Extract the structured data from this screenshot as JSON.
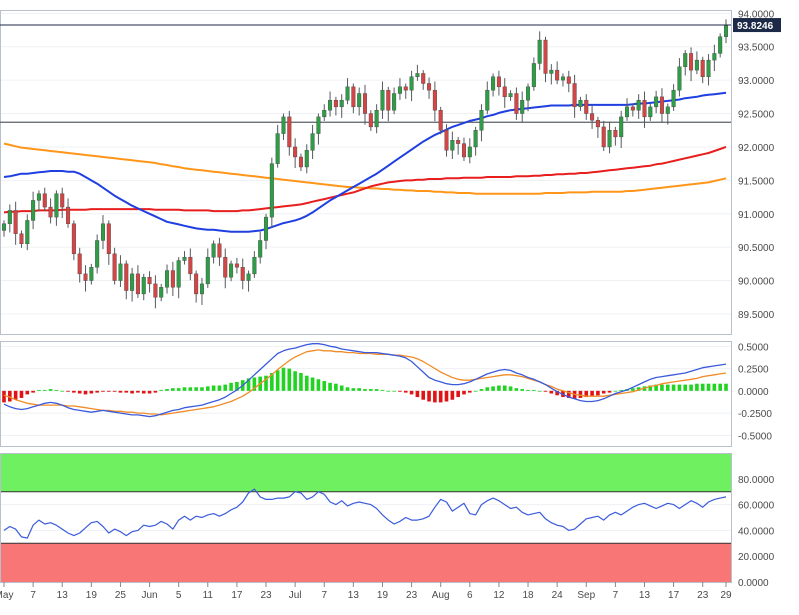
{
  "chart_data": [
    {
      "type": "candlestick",
      "name": "price",
      "ylim": [
        89.2,
        94.05
      ],
      "y_ticks": [
        "94.0000",
        "93.5000",
        "93.0000",
        "92.5000",
        "92.0000",
        "91.5000",
        "91.0000",
        "90.5000",
        "90.0000",
        "89.5000"
      ],
      "y_tick_values": [
        94.0,
        93.5,
        93.0,
        92.5,
        92.0,
        91.5,
        91.0,
        90.5,
        90.0,
        89.5
      ],
      "last_price_label": "93.8246",
      "last_price": 93.8246,
      "horizontal_level": 92.37,
      "colors": {
        "up": "#2e9e46",
        "down": "#d64545",
        "ma_fast": "#1f3fe0",
        "ma_mid": "#e81e1e",
        "ma_slow": "#ff9619"
      },
      "x_labels": [
        "May",
        "7",
        "13",
        "19",
        "25",
        "Jun",
        "5",
        "11",
        "17",
        "23",
        "Jul",
        "7",
        "13",
        "19",
        "23",
        "Aug",
        "6",
        "12",
        "18",
        "24",
        "Sep",
        "7",
        "13",
        "17",
        "23",
        "29"
      ],
      "x_label_positions": [
        0,
        5,
        10,
        15,
        20,
        25,
        30,
        35,
        40,
        45,
        50,
        55,
        60,
        65,
        70,
        75,
        80,
        85,
        90,
        95,
        100,
        105,
        110,
        115,
        120,
        124
      ],
      "closes": [
        90.85,
        91.05,
        90.7,
        90.55,
        90.9,
        91.2,
        91.3,
        91.1,
        90.95,
        91.3,
        91.1,
        90.85,
        90.4,
        90.1,
        90.0,
        90.2,
        90.6,
        90.85,
        90.4,
        90.0,
        90.25,
        89.85,
        90.1,
        89.8,
        90.05,
        89.95,
        89.75,
        89.9,
        90.15,
        89.9,
        90.3,
        90.35,
        90.1,
        89.8,
        89.95,
        90.35,
        90.55,
        90.35,
        90.05,
        90.25,
        90.2,
        90.0,
        90.1,
        90.35,
        90.6,
        90.95,
        91.75,
        92.2,
        92.45,
        92.0,
        91.85,
        91.7,
        91.95,
        92.2,
        92.45,
        92.55,
        92.7,
        92.6,
        92.7,
        92.9,
        92.6,
        92.8,
        92.5,
        92.3,
        92.55,
        92.85,
        92.55,
        92.8,
        92.9,
        92.85,
        93.05,
        93.1,
        92.95,
        92.85,
        92.55,
        92.25,
        91.95,
        92.1,
        92.05,
        91.85,
        92.0,
        92.25,
        92.55,
        92.85,
        93.05,
        92.9,
        92.75,
        92.8,
        92.5,
        92.7,
        92.9,
        93.25,
        93.6,
        93.1,
        93.15,
        93.0,
        93.05,
        92.95,
        92.6,
        92.7,
        92.5,
        92.4,
        92.3,
        92.0,
        92.25,
        92.15,
        92.45,
        92.6,
        92.55,
        92.7,
        92.45,
        92.6,
        92.75,
        92.5,
        92.6,
        92.85,
        93.2,
        93.4,
        93.15,
        93.3,
        93.05,
        93.3,
        93.4,
        93.65,
        93.82
      ],
      "ma_fast": [
        91.55,
        91.56,
        91.58,
        91.6,
        91.6,
        91.61,
        91.62,
        91.63,
        91.64,
        91.64,
        91.64,
        91.63,
        91.63,
        91.6,
        91.55,
        91.5,
        91.45,
        91.39,
        91.33,
        91.27,
        91.22,
        91.17,
        91.12,
        91.08,
        91.04,
        91.0,
        90.96,
        90.92,
        90.88,
        90.86,
        90.84,
        90.82,
        90.8,
        90.78,
        90.77,
        90.76,
        90.76,
        90.75,
        90.74,
        90.73,
        90.73,
        90.73,
        90.73,
        90.74,
        90.75,
        90.77,
        90.8,
        90.83,
        90.86,
        90.88,
        90.9,
        90.93,
        90.97,
        91.02,
        91.08,
        91.14,
        91.2,
        91.25,
        91.3,
        91.35,
        91.4,
        91.45,
        91.5,
        91.55,
        91.6,
        91.66,
        91.72,
        91.78,
        91.84,
        91.9,
        91.96,
        92.02,
        92.08,
        92.13,
        92.18,
        92.22,
        92.26,
        92.3,
        92.33,
        92.36,
        92.39,
        92.41,
        92.43,
        92.46,
        92.48,
        92.51,
        92.53,
        92.55,
        92.56,
        92.57,
        92.58,
        92.59,
        92.6,
        92.61,
        92.62,
        92.62,
        92.62,
        92.62,
        92.63,
        92.63,
        92.63,
        92.63,
        92.63,
        92.63,
        92.63,
        92.63,
        92.63,
        92.63,
        92.64,
        92.65,
        92.65,
        92.66,
        92.67,
        92.68,
        92.69,
        92.7,
        92.71,
        92.73,
        92.74,
        92.75,
        92.77,
        92.78,
        92.79,
        92.8,
        92.81
      ],
      "ma_mid": [
        91.02,
        91.03,
        91.03,
        91.04,
        91.04,
        91.04,
        91.05,
        91.05,
        91.05,
        91.05,
        91.06,
        91.06,
        91.06,
        91.06,
        91.06,
        91.07,
        91.07,
        91.07,
        91.07,
        91.07,
        91.07,
        91.07,
        91.07,
        91.07,
        91.07,
        91.07,
        91.06,
        91.06,
        91.06,
        91.06,
        91.06,
        91.05,
        91.05,
        91.05,
        91.05,
        91.05,
        91.04,
        91.04,
        91.04,
        91.04,
        91.04,
        91.05,
        91.05,
        91.06,
        91.07,
        91.08,
        91.09,
        91.1,
        91.11,
        91.12,
        91.13,
        91.14,
        91.16,
        91.18,
        91.2,
        91.22,
        91.24,
        91.26,
        91.28,
        91.3,
        91.32,
        91.35,
        91.38,
        91.41,
        91.43,
        91.45,
        91.47,
        91.48,
        91.49,
        91.5,
        91.5,
        91.51,
        91.51,
        91.52,
        91.52,
        91.52,
        91.53,
        91.53,
        91.53,
        91.54,
        91.54,
        91.54,
        91.54,
        91.55,
        91.55,
        91.55,
        91.55,
        91.55,
        91.56,
        91.56,
        91.56,
        91.57,
        91.57,
        91.58,
        91.58,
        91.59,
        91.59,
        91.6,
        91.6,
        91.61,
        91.61,
        91.62,
        91.63,
        91.64,
        91.65,
        91.66,
        91.67,
        91.68,
        91.69,
        91.7,
        91.71,
        91.72,
        91.74,
        91.75,
        91.77,
        91.79,
        91.81,
        91.83,
        91.85,
        91.87,
        91.89,
        91.91,
        91.94,
        91.97,
        92.0
      ],
      "ma_slow": [
        92.05,
        92.03,
        92.01,
        91.99,
        91.98,
        91.97,
        91.96,
        91.95,
        91.94,
        91.93,
        91.92,
        91.91,
        91.9,
        91.89,
        91.88,
        91.87,
        91.86,
        91.85,
        91.84,
        91.83,
        91.82,
        91.81,
        91.8,
        91.79,
        91.78,
        91.77,
        91.76,
        91.74,
        91.73,
        91.71,
        91.7,
        91.68,
        91.67,
        91.66,
        91.65,
        91.64,
        91.63,
        91.62,
        91.61,
        91.6,
        91.59,
        91.58,
        91.57,
        91.56,
        91.55,
        91.54,
        91.53,
        91.52,
        91.51,
        91.5,
        91.49,
        91.48,
        91.47,
        91.46,
        91.45,
        91.44,
        91.43,
        91.42,
        91.41,
        91.4,
        91.4,
        91.39,
        91.39,
        91.38,
        91.38,
        91.37,
        91.37,
        91.36,
        91.36,
        91.35,
        91.35,
        91.34,
        91.34,
        91.34,
        91.33,
        91.33,
        91.32,
        91.32,
        91.31,
        91.31,
        91.31,
        91.3,
        91.3,
        91.3,
        91.3,
        91.3,
        91.3,
        91.3,
        91.3,
        91.3,
        91.3,
        91.3,
        91.3,
        91.31,
        91.31,
        91.31,
        91.31,
        91.32,
        91.32,
        91.32,
        91.32,
        91.33,
        91.33,
        91.33,
        91.33,
        91.33,
        91.33,
        91.34,
        91.34,
        91.35,
        91.36,
        91.37,
        91.38,
        91.39,
        91.4,
        91.41,
        91.42,
        91.43,
        91.44,
        91.45,
        91.46,
        91.47,
        91.49,
        91.51,
        91.53
      ]
    },
    {
      "type": "macd",
      "name": "macd",
      "ylim": [
        -0.62,
        0.56
      ],
      "y_ticks": [
        "0.5000",
        "0.2500",
        "0.0000",
        "-0.2500",
        "-0.5000"
      ],
      "y_tick_values": [
        0.5,
        0.25,
        0.0,
        -0.25,
        -0.5
      ],
      "colors": {
        "macd": "#3b5bdb",
        "signal": "#f08c28",
        "hist_up": "#22d322",
        "hist_down": "#e01414"
      },
      "macd_line": [
        -0.15,
        -0.18,
        -0.2,
        -0.21,
        -0.2,
        -0.18,
        -0.16,
        -0.14,
        -0.13,
        -0.14,
        -0.16,
        -0.19,
        -0.21,
        -0.22,
        -0.23,
        -0.24,
        -0.23,
        -0.22,
        -0.23,
        -0.24,
        -0.25,
        -0.26,
        -0.27,
        -0.27,
        -0.28,
        -0.29,
        -0.28,
        -0.26,
        -0.24,
        -0.22,
        -0.21,
        -0.19,
        -0.18,
        -0.17,
        -0.16,
        -0.14,
        -0.12,
        -0.1,
        -0.07,
        -0.03,
        0.01,
        0.06,
        0.12,
        0.18,
        0.24,
        0.3,
        0.36,
        0.42,
        0.45,
        0.47,
        0.48,
        0.5,
        0.52,
        0.53,
        0.53,
        0.52,
        0.5,
        0.49,
        0.47,
        0.46,
        0.45,
        0.44,
        0.43,
        0.43,
        0.43,
        0.42,
        0.41,
        0.4,
        0.39,
        0.37,
        0.33,
        0.27,
        0.21,
        0.15,
        0.12,
        0.1,
        0.08,
        0.07,
        0.07,
        0.08,
        0.1,
        0.13,
        0.16,
        0.19,
        0.21,
        0.23,
        0.24,
        0.23,
        0.2,
        0.18,
        0.15,
        0.13,
        0.1,
        0.07,
        0.03,
        -0.01,
        -0.04,
        -0.07,
        -0.09,
        -0.11,
        -0.12,
        -0.12,
        -0.11,
        -0.09,
        -0.06,
        -0.03,
        -0.01,
        0.01,
        0.04,
        0.07,
        0.1,
        0.13,
        0.15,
        0.16,
        0.17,
        0.18,
        0.19,
        0.2,
        0.22,
        0.24,
        0.26,
        0.27,
        0.28,
        0.29,
        0.3
      ],
      "signal_line": [
        -0.05,
        -0.07,
        -0.1,
        -0.12,
        -0.14,
        -0.15,
        -0.16,
        -0.16,
        -0.16,
        -0.16,
        -0.16,
        -0.17,
        -0.17,
        -0.18,
        -0.19,
        -0.2,
        -0.21,
        -0.22,
        -0.22,
        -0.23,
        -0.23,
        -0.24,
        -0.24,
        -0.25,
        -0.25,
        -0.26,
        -0.26,
        -0.27,
        -0.26,
        -0.25,
        -0.24,
        -0.23,
        -0.22,
        -0.21,
        -0.2,
        -0.19,
        -0.18,
        -0.16,
        -0.14,
        -0.12,
        -0.09,
        -0.06,
        -0.02,
        0.03,
        0.08,
        0.13,
        0.18,
        0.24,
        0.29,
        0.34,
        0.38,
        0.41,
        0.44,
        0.45,
        0.46,
        0.45,
        0.45,
        0.44,
        0.44,
        0.43,
        0.43,
        0.42,
        0.42,
        0.42,
        0.41,
        0.41,
        0.41,
        0.4,
        0.4,
        0.39,
        0.38,
        0.36,
        0.33,
        0.29,
        0.25,
        0.21,
        0.18,
        0.15,
        0.13,
        0.12,
        0.12,
        0.13,
        0.14,
        0.15,
        0.16,
        0.17,
        0.18,
        0.18,
        0.17,
        0.16,
        0.14,
        0.12,
        0.1,
        0.07,
        0.05,
        0.02,
        0.0,
        -0.02,
        -0.04,
        -0.05,
        -0.06,
        -0.06,
        -0.06,
        -0.06,
        -0.05,
        -0.04,
        -0.03,
        -0.02,
        -0.01,
        0.01,
        0.03,
        0.05,
        0.06,
        0.08,
        0.09,
        0.1,
        0.11,
        0.12,
        0.13,
        0.14,
        0.16,
        0.17,
        0.18,
        0.19,
        0.2
      ],
      "histogram": [
        -0.13,
        -0.12,
        -0.1,
        -0.08,
        -0.04,
        -0.02,
        0.01,
        0.01,
        0.02,
        0.01,
        0.0,
        -0.01,
        -0.02,
        -0.03,
        -0.04,
        -0.03,
        -0.02,
        -0.01,
        -0.01,
        -0.01,
        -0.02,
        -0.02,
        -0.03,
        -0.02,
        -0.03,
        -0.03,
        -0.02,
        0.01,
        0.02,
        0.03,
        0.03,
        0.04,
        0.04,
        0.04,
        0.04,
        0.05,
        0.06,
        0.06,
        0.07,
        0.09,
        0.1,
        0.12,
        0.14,
        0.15,
        0.16,
        0.17,
        0.2,
        0.23,
        0.26,
        0.25,
        0.22,
        0.2,
        0.17,
        0.15,
        0.13,
        0.11,
        0.09,
        0.08,
        0.06,
        0.04,
        0.03,
        0.03,
        0.02,
        0.02,
        0.02,
        0.01,
        0.0,
        0.0,
        -0.01,
        -0.02,
        -0.04,
        -0.07,
        -0.1,
        -0.12,
        -0.13,
        -0.13,
        -0.12,
        -0.1,
        -0.07,
        -0.04,
        -0.02,
        0.0,
        0.02,
        0.04,
        0.05,
        0.06,
        0.06,
        0.05,
        0.03,
        0.02,
        0.01,
        0.01,
        0.0,
        -0.01,
        -0.03,
        -0.05,
        -0.07,
        -0.08,
        -0.09,
        -0.08,
        -0.07,
        -0.06,
        -0.05,
        -0.03,
        -0.02,
        0.0,
        0.01,
        0.02,
        0.03,
        0.04,
        0.05,
        0.06,
        0.07,
        0.07,
        0.07,
        0.07,
        0.07,
        0.07,
        0.07,
        0.08,
        0.08,
        0.08,
        0.08,
        0.08,
        0.08
      ]
    },
    {
      "type": "rsi",
      "name": "rsi",
      "ylim": [
        0,
        100
      ],
      "y_ticks": [
        "80.0000",
        "60.0000",
        "40.0000",
        "20.0000",
        "0.0000"
      ],
      "y_tick_values": [
        80,
        60,
        40,
        20,
        0
      ],
      "overbought": 70,
      "oversold": 30,
      "colors": {
        "line": "#3b5bdb",
        "overbought_zone": "#6ef060",
        "oversold_zone": "#f87676"
      },
      "values": [
        40.0,
        43.0,
        41.0,
        35.0,
        34.0,
        44.0,
        48.0,
        45.0,
        46.0,
        44.0,
        41.0,
        38.0,
        36.0,
        38.0,
        42.0,
        46.0,
        47.0,
        43.0,
        38.0,
        41.0,
        39.0,
        36.0,
        39.0,
        40.0,
        44.0,
        43.0,
        44.0,
        47.0,
        45.0,
        41.0,
        48.0,
        51.0,
        48.0,
        51.0,
        50.0,
        52.0,
        53.0,
        51.0,
        53.0,
        56.0,
        58.0,
        62.0,
        69.0,
        72.0,
        66.0,
        64.0,
        64.0,
        65.0,
        65.0,
        66.0,
        70.0,
        69.0,
        64.0,
        66.0,
        70.0,
        68.0,
        62.0,
        60.0,
        63.0,
        59.0,
        61.0,
        62.0,
        61.0,
        60.0,
        57.0,
        52.0,
        48.0,
        45.0,
        47.0,
        50.0,
        48.0,
        48.0,
        49.0,
        51.0,
        58.0,
        64.0,
        62.0,
        55.0,
        58.0,
        61.0,
        53.0,
        52.0,
        60.0,
        63.0,
        65.0,
        63.0,
        60.0,
        57.0,
        58.0,
        54.0,
        52.0,
        53.0,
        54.0,
        49.0,
        46.0,
        44.0,
        43.0,
        40.0,
        41.0,
        45.0,
        49.0,
        50.0,
        51.0,
        48.0,
        52.0,
        54.0,
        52.0,
        55.0,
        58.0,
        60.0,
        61.0,
        59.0,
        57.0,
        59.0,
        61.0,
        60.0,
        57.0,
        60.0,
        63.0,
        61.0,
        58.0,
        62.0,
        64.0,
        65.0,
        66.0
      ]
    }
  ]
}
